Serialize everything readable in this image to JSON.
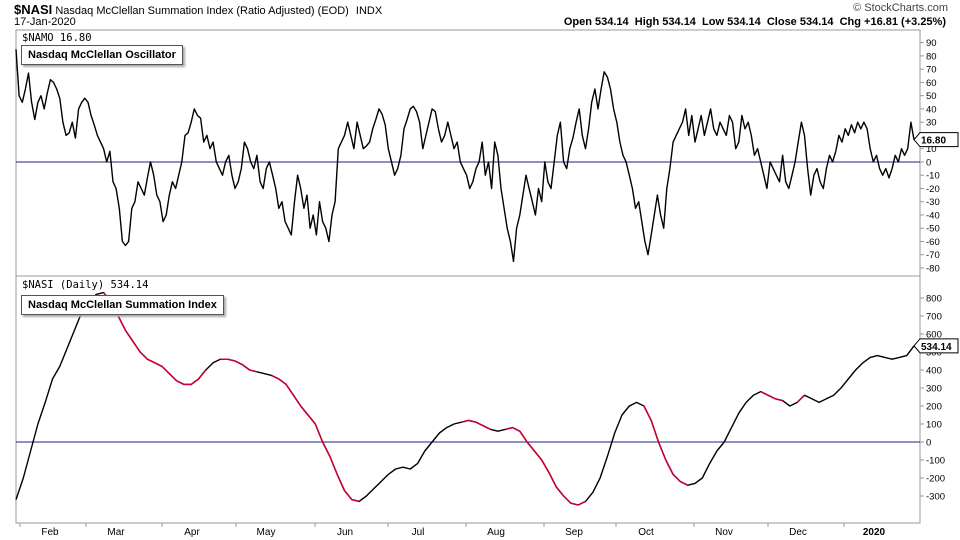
{
  "header": {
    "symbol": "$NASI",
    "title": "Nasdaq McClellan Summation Index (Ratio Adjusted) (EOD)",
    "exchange": "INDX",
    "date": "17-Jan-2020",
    "ohlc": "Open 534.14  High 534.14  Low 534.14  Close 534.14  Chg +16.81 (+3.25%)",
    "watermark": "© StockCharts.com"
  },
  "chart_data": [
    {
      "type": "line",
      "name": "nasdaq-mcclellan-oscillator",
      "legend": "$NAMO 16.80",
      "label": "Nasdaq McClellan Oscillator",
      "last_value_label": "16.80",
      "ylim": [
        -80,
        95
      ],
      "yticks": [
        90,
        80,
        70,
        60,
        50,
        40,
        30,
        20,
        10,
        0,
        -10,
        -20,
        -30,
        -40,
        -50,
        -60,
        -70,
        -80
      ],
      "reference_line": 0,
      "line_color": "#000000",
      "values": [
        85,
        50,
        45,
        55,
        67,
        45,
        32,
        45,
        50,
        40,
        52,
        62,
        60,
        55,
        48,
        30,
        20,
        22,
        30,
        18,
        40,
        45,
        48,
        45,
        35,
        28,
        20,
        15,
        10,
        0,
        8,
        -15,
        -20,
        -35,
        -60,
        -63,
        -60,
        -35,
        -30,
        -15,
        -20,
        -25,
        -12,
        0,
        -10,
        -25,
        -30,
        -45,
        -40,
        -25,
        -15,
        -20,
        -10,
        0,
        20,
        22,
        30,
        40,
        35,
        33,
        15,
        20,
        10,
        15,
        0,
        -5,
        -10,
        0,
        5,
        -10,
        -20,
        -15,
        -5,
        15,
        10,
        0,
        -5,
        5,
        -15,
        -20,
        -5,
        0,
        -10,
        -20,
        -35,
        -30,
        -45,
        -50,
        -55,
        -30,
        -10,
        -20,
        -35,
        -25,
        -50,
        -40,
        -55,
        -30,
        -45,
        -50,
        -60,
        -40,
        -30,
        10,
        15,
        20,
        30,
        20,
        10,
        30,
        20,
        10,
        12,
        15,
        25,
        32,
        40,
        36,
        28,
        10,
        0,
        -10,
        -5,
        5,
        25,
        32,
        40,
        42,
        38,
        30,
        10,
        20,
        30,
        40,
        38,
        25,
        15,
        20,
        30,
        20,
        10,
        15,
        0,
        -5,
        -10,
        -20,
        -15,
        -5,
        0,
        15,
        -10,
        0,
        -20,
        15,
        5,
        -20,
        -35,
        -50,
        -60,
        -75,
        -50,
        -40,
        -25,
        -10,
        -20,
        -30,
        -40,
        -20,
        -30,
        0,
        -15,
        -20,
        0,
        20,
        30,
        0,
        -5,
        10,
        18,
        30,
        40,
        20,
        10,
        25,
        45,
        55,
        40,
        55,
        68,
        64,
        55,
        40,
        30,
        15,
        5,
        0,
        -10,
        -20,
        -35,
        -30,
        -45,
        -60,
        -70,
        -55,
        -40,
        -25,
        -40,
        -50,
        -20,
        -5,
        15,
        20,
        25,
        30,
        40,
        20,
        35,
        15,
        25,
        35,
        20,
        30,
        40,
        25,
        20,
        30,
        25,
        20,
        35,
        30,
        10,
        15,
        35,
        25,
        30,
        20,
        5,
        10,
        0,
        -10,
        -20,
        0,
        -5,
        -10,
        -15,
        5,
        -15,
        -20,
        -10,
        0,
        15,
        30,
        20,
        -5,
        -25,
        -10,
        -5,
        -15,
        -20,
        -5,
        5,
        0,
        8,
        20,
        15,
        25,
        20,
        28,
        22,
        30,
        25,
        30,
        25,
        10,
        0,
        5,
        -5,
        -10,
        -5,
        -12,
        -5,
        5,
        0,
        10,
        5,
        10,
        30,
        16.8
      ]
    },
    {
      "type": "line",
      "name": "nasdaq-mcclellan-summation-index",
      "legend": "$NASI (Daily) 534.14",
      "label": "Nasdaq McClellan Summation Index",
      "last_value_label": "534.14",
      "ylim": [
        -350,
        800
      ],
      "yticks": [
        800,
        700,
        600,
        500,
        400,
        300,
        200,
        100,
        0,
        -100,
        -200,
        -300
      ],
      "reference_line": 0,
      "line_color": "#000000",
      "falling_color": "#cc0033",
      "xlabels": [
        "Feb",
        "Mar",
        "Apr",
        "May",
        "Jun",
        "Jul",
        "Aug",
        "Sep",
        "Oct",
        "Nov",
        "Dec",
        "2020"
      ],
      "values": [
        -320,
        -200,
        -50,
        100,
        220,
        350,
        420,
        520,
        620,
        720,
        780,
        820,
        830,
        780,
        700,
        620,
        560,
        500,
        460,
        440,
        420,
        380,
        340,
        320,
        320,
        350,
        400,
        440,
        460,
        460,
        450,
        430,
        400,
        390,
        380,
        370,
        350,
        320,
        260,
        200,
        150,
        100,
        0,
        -80,
        -180,
        -270,
        -320,
        -330,
        -300,
        -260,
        -220,
        -180,
        -150,
        -140,
        -150,
        -120,
        -50,
        0,
        50,
        80,
        100,
        110,
        120,
        110,
        90,
        70,
        60,
        70,
        80,
        60,
        0,
        -50,
        -100,
        -170,
        -250,
        -300,
        -340,
        -350,
        -330,
        -280,
        -200,
        -80,
        50,
        150,
        200,
        220,
        200,
        120,
        0,
        -100,
        -180,
        -220,
        -240,
        -230,
        -200,
        -120,
        -50,
        0,
        80,
        160,
        220,
        260,
        280,
        260,
        240,
        230,
        200,
        220,
        260,
        240,
        220,
        240,
        260,
        300,
        350,
        400,
        440,
        470,
        480,
        470,
        460,
        470,
        480,
        534.14
      ],
      "falling_segments": [
        [
          12,
          26
        ],
        [
          28,
          33
        ],
        [
          35,
          47
        ],
        [
          61,
          65
        ],
        [
          67,
          73
        ],
        [
          73,
          78
        ],
        [
          86,
          92
        ],
        [
          102,
          105
        ],
        [
          107,
          108
        ]
      ]
    }
  ]
}
